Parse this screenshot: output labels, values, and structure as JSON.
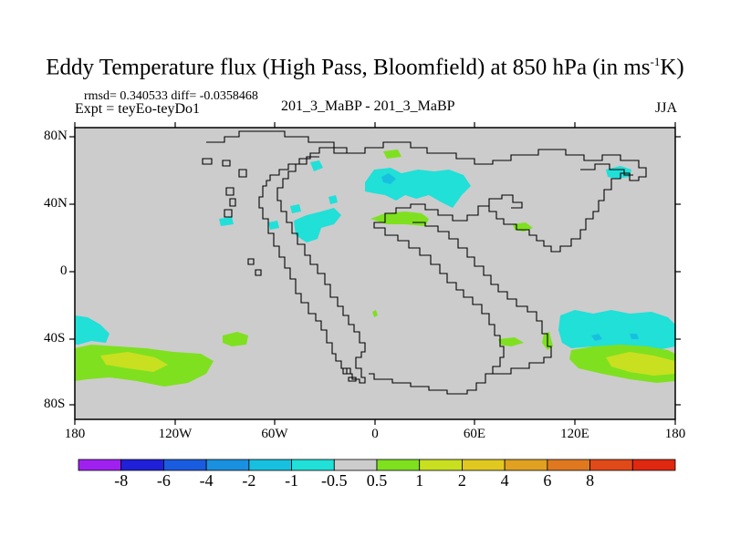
{
  "title": {
    "text": "Eddy Temperature flux (High Pass, Bloomfield) at 850 hPa (in ms",
    "sup": "-1",
    "tail": "K)"
  },
  "stats_text": "rmsd= 0.340533 diff= -0.0358468",
  "expt_text": "Expt = teyEo-teyDo1",
  "center_text": "201_3_MaBP - 201_3_MaBP",
  "season_text": "JJA",
  "axes": {
    "lon_ticks": [
      "180",
      "120W",
      "60W",
      "0",
      "60E",
      "120E",
      "180"
    ],
    "lat_ticks": [
      "80N",
      "40N",
      "0",
      "40S",
      "80S"
    ]
  },
  "colors": {
    "background_field": "#cccccc",
    "coastline": "#000000"
  },
  "colorbar": {
    "colors": [
      "#a020f0",
      "#2020d8",
      "#1a5ce0",
      "#1a90e0",
      "#18c0e0",
      "#20e0d8",
      "#cccccc",
      "#7fe020",
      "#c8e020",
      "#e0c820",
      "#e0a020",
      "#e07820",
      "#e04a18",
      "#e02810"
    ],
    "labels": [
      "-8",
      "-6",
      "-4",
      "-2",
      "-1",
      "-0.5",
      "0.5",
      "1",
      "2",
      "4",
      "6",
      "8"
    ]
  }
}
